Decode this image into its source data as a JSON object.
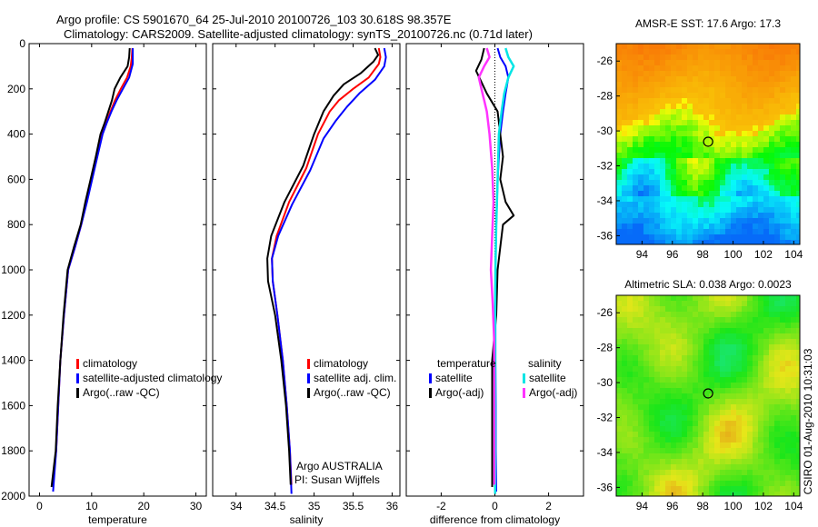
{
  "header": {
    "line1": "Argo profile: CS 5901670_64 25-Jul-2010 20100726_103 30.618S 98.357E",
    "line2": "Climatology: CARS2009. Satellite-adjusted climatology: synTS_20100726.nc (0.71d later)"
  },
  "side_note": "CSIRO 01-Aug-2010 10:31:03",
  "colors": {
    "climatology": "#ff0000",
    "satellite": "#0000ff",
    "argo": "#000000",
    "salinity_satellite": "#00e5e5",
    "salinity_argo": "#ff33ff"
  },
  "chart_data": [
    {
      "type": "line",
      "xlabel": "temperature",
      "ylim": [
        2000,
        0
      ],
      "xlim": [
        -2,
        32
      ],
      "xticks": [
        0,
        10,
        20,
        30
      ],
      "yticks": [
        0,
        200,
        400,
        600,
        800,
        1000,
        1200,
        1400,
        1600,
        1800,
        2000
      ],
      "legend": {
        "position": "bottom-right",
        "entries": [
          "climatology",
          "satellite-adjusted climatology",
          "Argo(..raw -QC)"
        ]
      },
      "series": [
        {
          "name": "climatology",
          "points": [
            [
              17.8,
              20
            ],
            [
              17.7,
              60
            ],
            [
              17.5,
              100
            ],
            [
              16.8,
              150
            ],
            [
              15.6,
              200
            ],
            [
              14.5,
              250
            ],
            [
              13.6,
              300
            ],
            [
              12.8,
              350
            ],
            [
              12.0,
              400
            ],
            [
              11.0,
              500
            ],
            [
              10.0,
              600
            ],
            [
              9.0,
              700
            ],
            [
              8.0,
              800
            ],
            [
              6.8,
              900
            ],
            [
              5.5,
              1000
            ],
            [
              4.7,
              1200
            ],
            [
              4.0,
              1400
            ],
            [
              3.6,
              1600
            ],
            [
              3.2,
              1800
            ],
            [
              2.5,
              1950
            ]
          ]
        },
        {
          "name": "satellite-adjusted climatology",
          "points": [
            [
              17.9,
              20
            ],
            [
              17.9,
              60
            ],
            [
              17.9,
              90
            ],
            [
              17.2,
              150
            ],
            [
              16.0,
              200
            ],
            [
              14.8,
              250
            ],
            [
              13.8,
              300
            ],
            [
              12.9,
              350
            ],
            [
              12.1,
              400
            ],
            [
              11.1,
              500
            ],
            [
              10.1,
              600
            ],
            [
              9.1,
              700
            ],
            [
              8.0,
              800
            ],
            [
              6.8,
              900
            ],
            [
              5.5,
              1000
            ],
            [
              4.7,
              1200
            ],
            [
              4.0,
              1400
            ],
            [
              3.6,
              1600
            ],
            [
              3.2,
              1800
            ],
            [
              2.6,
              1980
            ]
          ]
        },
        {
          "name": "Argo(..raw -QC)",
          "points": [
            [
              17.3,
              20
            ],
            [
              17.2,
              60
            ],
            [
              16.9,
              100
            ],
            [
              15.5,
              150
            ],
            [
              14.4,
              200
            ],
            [
              13.9,
              250
            ],
            [
              13.2,
              300
            ],
            [
              12.5,
              350
            ],
            [
              11.7,
              400
            ],
            [
              10.8,
              500
            ],
            [
              9.8,
              600
            ],
            [
              8.8,
              700
            ],
            [
              7.9,
              800
            ],
            [
              6.6,
              900
            ],
            [
              5.4,
              1000
            ],
            [
              4.6,
              1200
            ],
            [
              4.0,
              1400
            ],
            [
              3.5,
              1600
            ],
            [
              3.1,
              1800
            ],
            [
              2.3,
              1960
            ]
          ]
        }
      ]
    },
    {
      "type": "line",
      "xlabel": "salinity",
      "ylim": [
        2000,
        0
      ],
      "xlim": [
        33.7,
        36.1
      ],
      "xticks": [
        34,
        34.5,
        35,
        35.5,
        36
      ],
      "xticklabels": [
        "34",
        "34.5",
        "35",
        "35.5",
        "36"
      ],
      "legend": {
        "position": "bottom-right",
        "entries": [
          "climatology",
          "satellite adj. clim.",
          "Argo(..raw -QC)"
        ]
      },
      "annotations": [
        "Argo AUSTRALIA",
        "PI: Susan Wijffels"
      ],
      "series": [
        {
          "name": "climatology",
          "points": [
            [
              35.83,
              20
            ],
            [
              35.85,
              60
            ],
            [
              35.83,
              90
            ],
            [
              35.7,
              150
            ],
            [
              35.5,
              200
            ],
            [
              35.32,
              250
            ],
            [
              35.2,
              300
            ],
            [
              35.05,
              400
            ],
            [
              34.9,
              550
            ],
            [
              34.68,
              700
            ],
            [
              34.52,
              850
            ],
            [
              34.46,
              950
            ],
            [
              34.47,
              1050
            ],
            [
              34.53,
              1200
            ],
            [
              34.6,
              1400
            ],
            [
              34.65,
              1600
            ],
            [
              34.69,
              1800
            ],
            [
              34.71,
              1950
            ]
          ]
        },
        {
          "name": "satellite adj. clim.",
          "points": [
            [
              35.9,
              20
            ],
            [
              35.92,
              60
            ],
            [
              35.9,
              100
            ],
            [
              35.78,
              160
            ],
            [
              35.58,
              220
            ],
            [
              35.42,
              280
            ],
            [
              35.28,
              340
            ],
            [
              35.12,
              420
            ],
            [
              34.95,
              560
            ],
            [
              34.72,
              710
            ],
            [
              34.54,
              850
            ],
            [
              34.46,
              950
            ],
            [
              34.47,
              1050
            ],
            [
              34.53,
              1200
            ],
            [
              34.6,
              1400
            ],
            [
              34.65,
              1600
            ],
            [
              34.69,
              1800
            ],
            [
              34.71,
              1990
            ]
          ]
        },
        {
          "name": "Argo(..raw -QC)",
          "points": [
            [
              35.78,
              20
            ],
            [
              35.82,
              50
            ],
            [
              35.76,
              80
            ],
            [
              35.6,
              130
            ],
            [
              35.38,
              180
            ],
            [
              35.25,
              230
            ],
            [
              35.12,
              300
            ],
            [
              35.0,
              400
            ],
            [
              34.86,
              540
            ],
            [
              34.62,
              700
            ],
            [
              34.45,
              850
            ],
            [
              34.4,
              950
            ],
            [
              34.41,
              1050
            ],
            [
              34.5,
              1200
            ],
            [
              34.58,
              1400
            ],
            [
              34.64,
              1600
            ],
            [
              34.68,
              1800
            ],
            [
              34.7,
              1950
            ]
          ]
        }
      ]
    },
    {
      "type": "line",
      "xlabel": "difference from climatology",
      "ylim": [
        2000,
        0
      ],
      "xlim": [
        -3.3,
        3.3
      ],
      "xticks": [
        -2,
        0,
        2
      ],
      "legend": {
        "position": "bottom",
        "groups": [
          {
            "title": "temperature",
            "entries": [
              "satellite",
              "Argo(-adj)"
            ]
          },
          {
            "title": "salinity",
            "entries": [
              "satellite",
              "Argo(-adj)"
            ]
          }
        ]
      },
      "series": [
        {
          "name": "temperature satellite",
          "points": [
            [
              0.1,
              20
            ],
            [
              0.2,
              60
            ],
            [
              0.4,
              100
            ],
            [
              0.5,
              150
            ],
            [
              0.4,
              220
            ],
            [
              0.3,
              300
            ],
            [
              0.2,
              400
            ],
            [
              0.1,
              600
            ],
            [
              0.05,
              800
            ],
            [
              0.02,
              1000
            ],
            [
              0.02,
              1200
            ],
            [
              0.02,
              1400
            ],
            [
              0.03,
              1600
            ],
            [
              0.03,
              1800
            ],
            [
              0.05,
              1980
            ]
          ]
        },
        {
          "name": "temperature Argo(-adj)",
          "points": [
            [
              -0.4,
              20
            ],
            [
              -0.5,
              70
            ],
            [
              -0.7,
              120
            ],
            [
              -0.5,
              170
            ],
            [
              -0.3,
              220
            ],
            [
              0.1,
              300
            ],
            [
              0.2,
              400
            ],
            [
              0.3,
              500
            ],
            [
              0.2,
              600
            ],
            [
              0.4,
              700
            ],
            [
              0.7,
              760
            ],
            [
              0.3,
              800
            ],
            [
              0.2,
              900
            ],
            [
              0.1,
              1000
            ],
            [
              0.05,
              1200
            ],
            [
              -0.1,
              1400
            ],
            [
              -0.1,
              1600
            ],
            [
              -0.1,
              1800
            ],
            [
              -0.1,
              1960
            ]
          ]
        },
        {
          "name": "salinity satellite",
          "points": [
            [
              0.4,
              20
            ],
            [
              0.5,
              60
            ],
            [
              0.7,
              100
            ],
            [
              0.5,
              150
            ],
            [
              0.35,
              220
            ],
            [
              0.25,
              300
            ],
            [
              0.15,
              400
            ],
            [
              0.1,
              600
            ],
            [
              0.05,
              800
            ],
            [
              0.02,
              1000
            ],
            [
              0.01,
              1200
            ],
            [
              0.01,
              1400
            ],
            [
              0.01,
              1600
            ],
            [
              0.01,
              1800
            ],
            [
              0.01,
              1990
            ]
          ]
        },
        {
          "name": "salinity Argo(-adj)",
          "points": [
            [
              -0.3,
              20
            ],
            [
              -0.2,
              60
            ],
            [
              -0.4,
              100
            ],
            [
              -0.6,
              150
            ],
            [
              -0.5,
              200
            ],
            [
              -0.4,
              250
            ],
            [
              -0.3,
              300
            ],
            [
              -0.2,
              400
            ],
            [
              -0.1,
              550
            ],
            [
              -0.05,
              700
            ],
            [
              -0.1,
              850
            ],
            [
              -0.15,
              1000
            ],
            [
              -0.08,
              1150
            ],
            [
              -0.03,
              1300
            ],
            [
              -0.02,
              1500
            ],
            [
              -0.02,
              1700
            ],
            [
              -0.02,
              1950
            ]
          ]
        }
      ]
    },
    {
      "type": "heatmap",
      "title": "AMSR-E SST: 17.6 Argo: 17.3",
      "xlim": [
        92.3,
        104.4
      ],
      "ylim": [
        -36.5,
        -25
      ],
      "xticks": [
        94,
        96,
        98,
        100,
        102,
        104
      ],
      "yticks": [
        -26,
        -28,
        -30,
        -32,
        -34,
        -36
      ],
      "marker": {
        "lon": 98.357,
        "lat": -30.618
      }
    },
    {
      "type": "heatmap",
      "title": "Altimetric SLA: 0.038 Argo: 0.0023",
      "xlim": [
        92.3,
        104.4
      ],
      "ylim": [
        -36.5,
        -25
      ],
      "xticks": [
        94,
        96,
        98,
        100,
        102,
        104
      ],
      "yticks": [
        -26,
        -28,
        -30,
        -32,
        -34,
        -36
      ],
      "marker": {
        "lon": 98.357,
        "lat": -30.618
      }
    }
  ]
}
